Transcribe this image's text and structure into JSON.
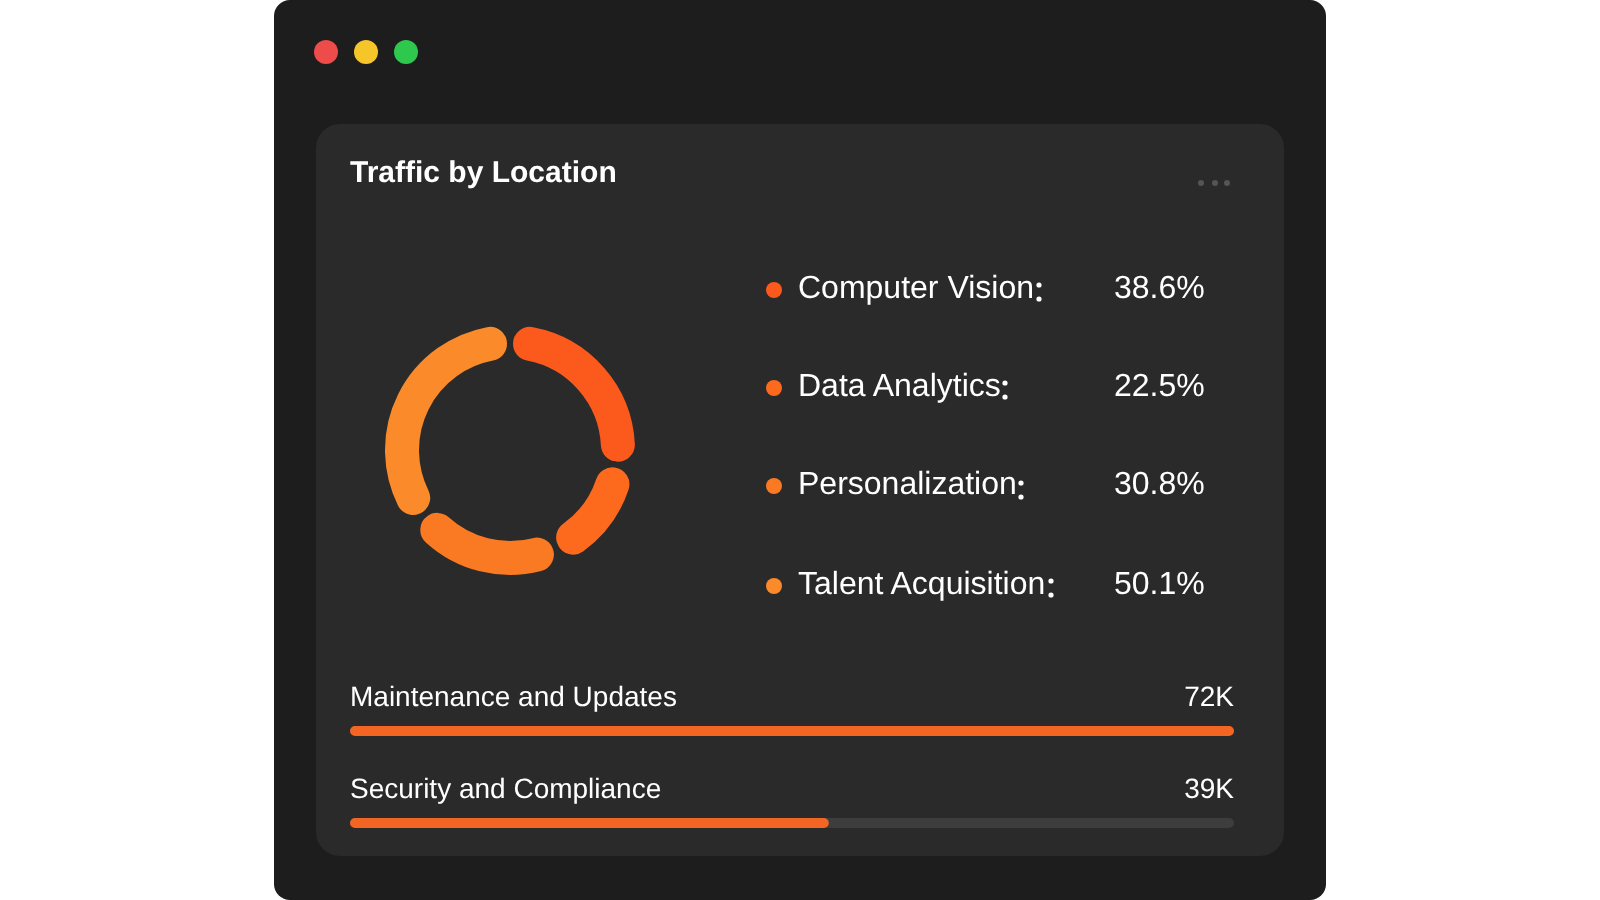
{
  "chart_data": [
    {
      "type": "donut",
      "title": "Traffic by Location",
      "categories": [
        "Computer Vision",
        "Data Analytics",
        "Personalization",
        "Talent Acquisition"
      ],
      "values": [
        38.6,
        22.5,
        30.8,
        50.1
      ],
      "value_labels": [
        "38.6%",
        "22.5%",
        "30.8%",
        "50.1%"
      ],
      "colors": [
        "#fb5a1c",
        "#fd6a1e",
        "#f97a22",
        "#fb8a2a"
      ],
      "legend": "right"
    },
    {
      "type": "bar",
      "orientation": "horizontal",
      "categories": [
        "Maintenance and Updates",
        "Security and Compliance"
      ],
      "values": [
        72000,
        39000
      ],
      "value_labels": [
        "72K",
        "39K"
      ],
      "color": "#f26522"
    }
  ]
}
